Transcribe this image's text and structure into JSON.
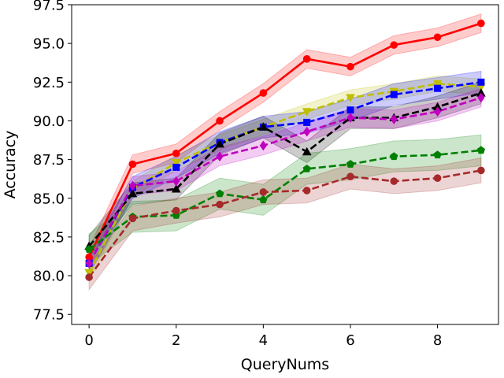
{
  "chart_data": {
    "type": "line",
    "title": "",
    "xlabel": "QueryNums",
    "ylabel": "Accuracy",
    "xlim": [
      -0.4,
      9.4
    ],
    "ylim": [
      76.85,
      97.5
    ],
    "xticks": [
      0,
      2,
      4,
      6,
      8
    ],
    "yticks": [
      77.5,
      80.0,
      82.5,
      85.0,
      87.5,
      90.0,
      92.5,
      95.0,
      97.5
    ],
    "ytick_labels": [
      "77.5",
      "80.0",
      "82.5",
      "85.0",
      "87.5",
      "90.0",
      "92.5",
      "95.0",
      "97.5"
    ],
    "grid": false,
    "legend": "none",
    "x": [
      0,
      1,
      2,
      3,
      4,
      5,
      6,
      7,
      8,
      9
    ],
    "series": [
      {
        "color": "#ff0000",
        "linestyle": "solid",
        "marker": "circle",
        "values": [
          81.2,
          87.2,
          87.9,
          90.0,
          91.8,
          94.0,
          93.5,
          94.9,
          95.4,
          96.3
        ],
        "band": 0.6
      },
      {
        "color": "#bfbf00",
        "linestyle": "dashed",
        "marker": "triangle-down",
        "values": [
          80.2,
          85.6,
          87.3,
          88.6,
          89.6,
          90.6,
          91.5,
          91.9,
          92.4,
          92.2
        ],
        "band": 0.5
      },
      {
        "color": "#0000ff",
        "linestyle": "dashed",
        "marker": "square",
        "values": [
          80.8,
          85.7,
          87.0,
          88.6,
          89.6,
          89.9,
          90.7,
          91.7,
          92.1,
          92.5
        ],
        "band": 0.7
      },
      {
        "color": "#000000",
        "linestyle": "dashed",
        "marker": "triangle-up",
        "values": [
          81.9,
          85.3,
          85.6,
          88.5,
          89.6,
          88.0,
          90.2,
          90.2,
          90.9,
          91.8
        ],
        "band": 0.7
      },
      {
        "color": "#bf00bf",
        "linestyle": "dashed",
        "marker": "diamond",
        "values": [
          80.8,
          85.8,
          86.1,
          87.7,
          88.4,
          89.3,
          90.2,
          90.1,
          90.6,
          91.5
        ],
        "band": 0.6
      },
      {
        "color": "#008000",
        "linestyle": "dashed",
        "marker": "pentagon",
        "values": [
          81.7,
          83.8,
          83.9,
          85.3,
          84.9,
          86.9,
          87.2,
          87.7,
          87.8,
          88.1
        ],
        "band": 1.0
      },
      {
        "color": "#a52a2a",
        "linestyle": "dashed",
        "marker": "circle",
        "values": [
          79.9,
          83.7,
          84.2,
          84.6,
          85.4,
          85.5,
          86.4,
          86.1,
          86.3,
          86.8
        ],
        "band": 0.8
      }
    ]
  }
}
